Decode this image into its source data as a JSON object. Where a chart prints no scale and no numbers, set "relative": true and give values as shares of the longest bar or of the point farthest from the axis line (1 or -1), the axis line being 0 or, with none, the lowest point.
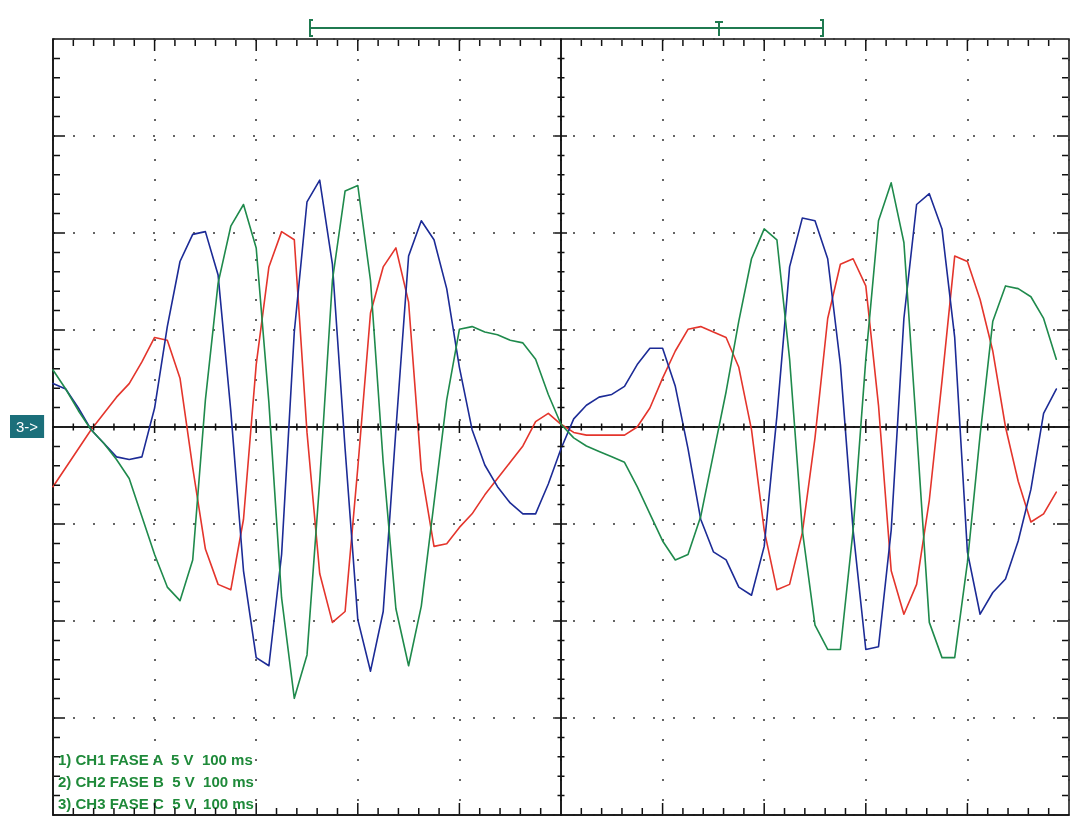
{
  "chart_data": {
    "type": "line",
    "relative": true,
    "grid": true,
    "categories": [
      null,
      null,
      null,
      null,
      null,
      null,
      null,
      null,
      null,
      null,
      null,
      null,
      null,
      null,
      null,
      null,
      null,
      null,
      null,
      null,
      null,
      null,
      null,
      null,
      null,
      null,
      null,
      null,
      null,
      null,
      null,
      null,
      null,
      null,
      null,
      null,
      null,
      null,
      null,
      null,
      null,
      null,
      null,
      null,
      null,
      null,
      null,
      null,
      null,
      null,
      null,
      null,
      null,
      null,
      null,
      null,
      null,
      null,
      null,
      null,
      null,
      null,
      null,
      null,
      null,
      null,
      null,
      null,
      null,
      null,
      null,
      null,
      null,
      null,
      null,
      null,
      null,
      null,
      null,
      null,
      null
    ],
    "series": [
      {
        "color": "#e4352c",
        "values": [
          -0.22,
          -0.15,
          -0.08,
          -0.01,
          0.05,
          0.11,
          0.16,
          0.24,
          0.33,
          0.32,
          0.18,
          -0.15,
          -0.45,
          -0.58,
          -0.6,
          -0.34,
          0.23,
          0.59,
          0.72,
          0.69,
          -0.02,
          -0.54,
          -0.72,
          -0.68,
          -0.15,
          0.42,
          0.59,
          0.66,
          0.46,
          -0.16,
          -0.44,
          -0.43,
          -0.37,
          -0.32,
          -0.25,
          -0.19,
          -0.13,
          -0.07,
          0.02,
          0.05,
          0.01,
          -0.02,
          -0.03,
          -0.03,
          -0.03,
          -0.03,
          0,
          0.07,
          0.18,
          0.28,
          0.36,
          0.37,
          0.35,
          0.33,
          0.22,
          -0.01,
          -0.38,
          -0.6,
          -0.58,
          -0.39,
          -0.04,
          0.4,
          0.6,
          0.62,
          0.52,
          0.08,
          -0.53,
          -0.69,
          -0.58,
          -0.27,
          0.17,
          0.63,
          0.61,
          0.47,
          0.28,
          0,
          -0.2,
          -0.35,
          -0.32,
          -0.24,
          null
        ]
      },
      {
        "color": "#1c2b96",
        "values": [
          0.16,
          0.14,
          0.07,
          -0.01,
          -0.06,
          -0.11,
          -0.12,
          -0.11,
          0.07,
          0.37,
          0.61,
          0.71,
          0.72,
          0.56,
          0.06,
          -0.53,
          -0.85,
          -0.88,
          -0.47,
          0.35,
          0.83,
          0.91,
          0.6,
          -0.08,
          -0.71,
          -0.9,
          -0.68,
          -0.01,
          0.63,
          0.76,
          0.69,
          0.51,
          0.22,
          -0.01,
          -0.14,
          -0.22,
          -0.28,
          -0.32,
          -0.32,
          -0.21,
          -0.08,
          0.03,
          0.08,
          0.11,
          0.12,
          0.15,
          0.23,
          0.29,
          0.29,
          0.15,
          -0.08,
          -0.34,
          -0.46,
          -0.49,
          -0.59,
          -0.62,
          -0.44,
          0.04,
          0.59,
          0.77,
          0.76,
          0.62,
          0.23,
          -0.38,
          -0.82,
          -0.81,
          -0.38,
          0.4,
          0.82,
          0.86,
          0.73,
          0.33,
          -0.46,
          -0.69,
          -0.61,
          -0.56,
          -0.42,
          -0.23,
          0.05,
          0.14,
          null
        ]
      },
      {
        "color": "#1f8a4c",
        "values": [
          0.21,
          0.14,
          0.06,
          -0.01,
          -0.06,
          -0.12,
          -0.19,
          -0.33,
          -0.47,
          -0.59,
          -0.64,
          -0.49,
          0.1,
          0.53,
          0.74,
          0.82,
          0.66,
          0.09,
          -0.63,
          -1,
          -0.84,
          -0.2,
          0.54,
          0.87,
          0.89,
          0.54,
          -0.13,
          -0.67,
          -0.88,
          -0.66,
          -0.28,
          0.1,
          0.36,
          0.37,
          0.35,
          0.34,
          0.32,
          0.31,
          0.25,
          0.12,
          0.01,
          -0.04,
          -0.07,
          -0.09,
          -0.11,
          -0.13,
          -0.22,
          -0.32,
          -0.42,
          -0.49,
          -0.47,
          -0.33,
          -0.1,
          0.13,
          0.39,
          0.62,
          0.73,
          0.69,
          0.25,
          -0.38,
          -0.73,
          -0.82,
          -0.82,
          -0.38,
          0.25,
          0.76,
          0.9,
          0.68,
          -0.01,
          -0.72,
          -0.85,
          -0.85,
          -0.5,
          -0.03,
          0.39,
          0.52,
          0.51,
          0.48,
          0.4,
          0.25,
          null
        ]
      }
    ],
    "annotations": [
      "3->",
      "1) CH1 FASE A  5 V  100 ms",
      "2) CH2 FASE B  5 V  100 ms",
      "3) CH3 FASE C  5 V  100 ms"
    ]
  }
}
